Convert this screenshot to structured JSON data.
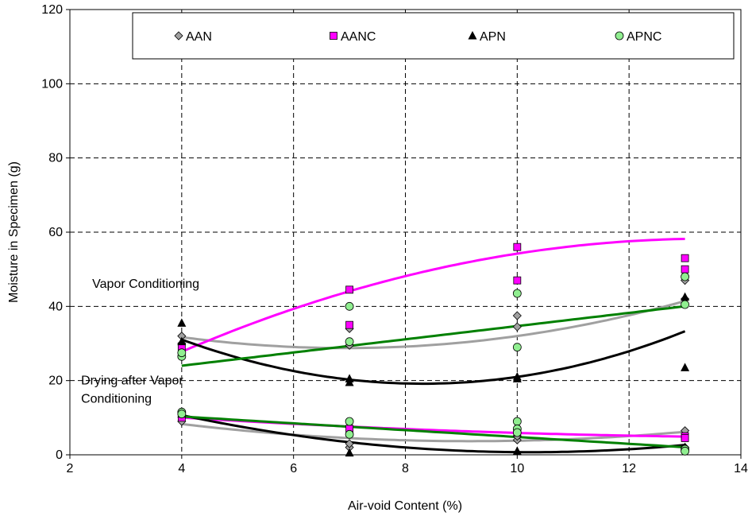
{
  "chart_data": {
    "type": "scatter",
    "xlabel": "Air-void Content (%)",
    "ylabel": "Moisture in Specimen (g)",
    "xlim": [
      2,
      14
    ],
    "ylim": [
      0,
      120
    ],
    "x_ticks": [
      2,
      4,
      6,
      8,
      10,
      12,
      14
    ],
    "y_ticks": [
      0,
      20,
      40,
      60,
      80,
      100,
      120
    ],
    "grid": true,
    "legend_position": "top",
    "annotations": [
      {
        "text": "Vapor Conditioning",
        "x": 2.4,
        "y": 45
      },
      {
        "text": "Drying after Vapor",
        "x": 2.2,
        "y": 19
      },
      {
        "text": "Conditioning",
        "x": 2.2,
        "y": 14
      }
    ],
    "series": [
      {
        "name": "AAN",
        "marker": "diamond",
        "color": "#a0a0a0",
        "trend_color": "#a0a0a0",
        "points": [
          [
            4,
            32
          ],
          [
            4,
            30
          ],
          [
            7,
            29.5
          ],
          [
            7,
            34
          ],
          [
            10,
            37.5
          ],
          [
            10,
            34.5
          ],
          [
            13,
            47
          ],
          [
            13,
            42
          ],
          [
            4,
            9
          ],
          [
            7,
            2
          ],
          [
            7,
            3
          ],
          [
            10,
            4
          ],
          [
            10,
            5
          ],
          [
            13,
            6.5
          ],
          [
            13,
            2
          ]
        ],
        "trends": [
          {
            "coeffs": [
              45.24,
              -4.757,
              0.3434
            ]
          },
          {
            "coeffs": [
              18.22,
              -3.171,
              0.1728
            ]
          }
        ]
      },
      {
        "name": "AANC",
        "marker": "square",
        "color": "#ff00ff",
        "trend_color": "#ff00ff",
        "points": [
          [
            4,
            29
          ],
          [
            7,
            44.5
          ],
          [
            7,
            35
          ],
          [
            10,
            56
          ],
          [
            10,
            47
          ],
          [
            13,
            53
          ],
          [
            13,
            50
          ],
          [
            4,
            10
          ],
          [
            7,
            7
          ],
          [
            10,
            6
          ],
          [
            13,
            5
          ],
          [
            13,
            4.5
          ]
        ],
        "trends": [
          {
            "coeffs": [
              -3.58,
              9.21,
              -0.343
            ]
          },
          {
            "coeffs": [
              14.4,
              -1.25,
              0.04
            ]
          }
        ]
      },
      {
        "name": "APN",
        "marker": "triangle",
        "color": "#000000",
        "trend_color": "#000000",
        "points": [
          [
            4,
            35.5
          ],
          [
            4,
            30.5
          ],
          [
            7,
            20.5
          ],
          [
            7,
            19.5
          ],
          [
            10,
            21
          ],
          [
            10,
            20.5
          ],
          [
            13,
            42.5
          ],
          [
            13,
            23.5
          ],
          [
            4,
            11
          ],
          [
            7,
            0.5
          ],
          [
            10,
            1
          ],
          [
            13,
            2
          ]
        ],
        "trends": [
          {
            "coeffs": [
              63.44,
              -10.66,
              0.6416
            ]
          },
          {
            "coeffs": [
              27.58,
              -5.25,
              0.2564
            ]
          }
        ]
      },
      {
        "name": "APNC",
        "marker": "circle",
        "color": "#90ee90",
        "trend_color": "#008000",
        "points": [
          [
            4,
            26.5
          ],
          [
            4,
            27.5
          ],
          [
            7,
            40
          ],
          [
            7,
            30.5
          ],
          [
            10,
            43.5
          ],
          [
            10,
            29
          ],
          [
            13,
            48
          ],
          [
            13,
            40.5
          ],
          [
            4,
            11.5
          ],
          [
            4,
            11
          ],
          [
            7,
            9
          ],
          [
            7,
            5.5
          ],
          [
            10,
            9
          ],
          [
            10,
            7
          ],
          [
            10,
            6
          ],
          [
            13,
            1.5
          ],
          [
            13,
            1
          ]
        ],
        "trends": [
          {
            "coeffs": [
              16.89,
              1.78
            ]
          },
          {
            "coeffs": [
              14,
              -0.92
            ]
          }
        ]
      }
    ]
  }
}
